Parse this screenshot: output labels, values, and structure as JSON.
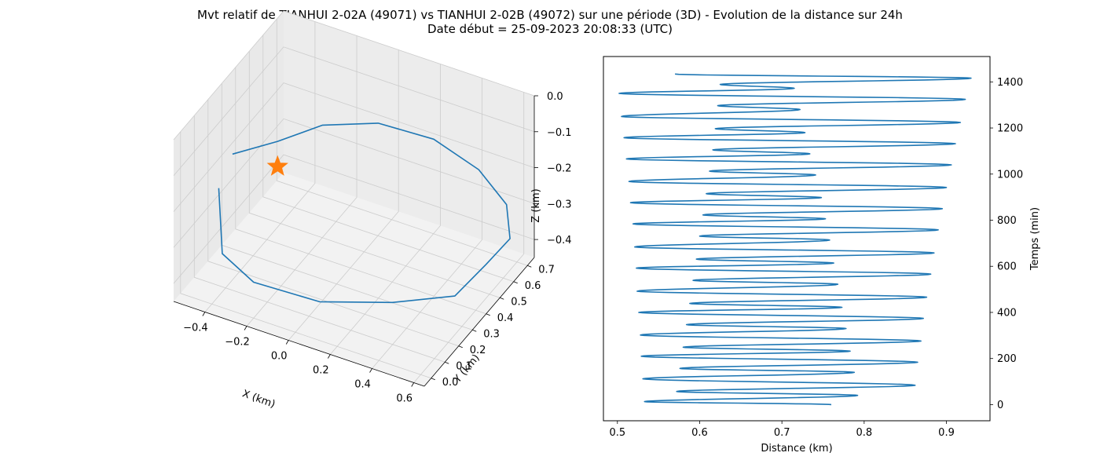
{
  "title": {
    "line1": "Mvt relatif de TIANHUI 2-02A (49071) vs TIANHUI 2-02B (49072) sur une période (3D) - Evolution de la distance sur 24h",
    "line2": "Date début = 25-09-2023 20:08:33 (UTC)"
  },
  "colors": {
    "line": "#1f77b4",
    "marker": "#ff7f0e",
    "pane": "#f2f2f2",
    "grid": "#cccccc"
  },
  "chart_data": [
    {
      "type": "line",
      "projection": "3d",
      "xlabel": "X (km)",
      "ylabel": "Y (km)",
      "zlabel": "Z (km)",
      "xlim": [
        -0.55,
        0.65
      ],
      "ylim": [
        -0.05,
        0.75
      ],
      "zlim": [
        -0.45,
        0.0
      ],
      "xticks": [
        "−0.4",
        "−0.2",
        "0.0",
        "0.2",
        "0.4",
        "0.6"
      ],
      "yticks": [
        "0.0",
        "0.1",
        "0.2",
        "0.3",
        "0.4",
        "0.5",
        "0.6",
        "0.7"
      ],
      "zticks": [
        "0.0",
        "−0.1",
        "−0.2",
        "−0.3",
        "−0.4"
      ],
      "grid": true,
      "marker": {
        "symbol": "star",
        "x": -0.25,
        "y": 0.25,
        "z": -0.15
      },
      "series": [
        {
          "points": [
            [
              -0.4,
              0.05,
              -0.15
            ],
            [
              -0.35,
              0.0,
              -0.3
            ],
            [
              -0.2,
              0.0,
              -0.35
            ],
            [
              0.05,
              0.1,
              -0.4
            ],
            [
              0.3,
              0.25,
              -0.42
            ],
            [
              0.5,
              0.4,
              -0.43
            ],
            [
              0.55,
              0.55,
              -0.4
            ],
            [
              0.58,
              0.68,
              -0.38
            ],
            [
              0.55,
              0.7,
              -0.3
            ],
            [
              0.45,
              0.65,
              -0.2
            ],
            [
              0.3,
              0.55,
              -0.1
            ],
            [
              0.1,
              0.45,
              -0.05
            ],
            [
              -0.1,
              0.35,
              -0.05
            ],
            [
              -0.25,
              0.25,
              -0.08
            ],
            [
              -0.4,
              0.15,
              -0.1
            ]
          ]
        }
      ]
    },
    {
      "type": "line",
      "xlabel": "Distance (km)",
      "ylabel": "Temps (min)",
      "xlim": [
        0.483,
        0.953
      ],
      "ylim": [
        -70,
        1510
      ],
      "xticks": [
        0.5,
        0.6,
        0.7,
        0.8,
        0.9
      ],
      "yticks": [
        0,
        200,
        400,
        600,
        800,
        1000,
        1200,
        1400
      ],
      "y_axis_position": "right",
      "series": [
        {
          "turning_points": [
            [
              0.76,
              0
            ],
            [
              0.533,
              13
            ],
            [
              0.792,
              40
            ],
            [
              0.572,
              57
            ],
            [
              0.862,
              84
            ],
            [
              0.531,
              112
            ],
            [
              0.788,
              140
            ],
            [
              0.576,
              157
            ],
            [
              0.865,
              184
            ],
            [
              0.529,
              210
            ],
            [
              0.783,
              232
            ],
            [
              0.58,
              249
            ],
            [
              0.869,
              276
            ],
            [
              0.528,
              302
            ],
            [
              0.778,
              330
            ],
            [
              0.584,
              347
            ],
            [
              0.872,
              374
            ],
            [
              0.526,
              400
            ],
            [
              0.773,
              422
            ],
            [
              0.588,
              439
            ],
            [
              0.876,
              466
            ],
            [
              0.524,
              492
            ],
            [
              0.768,
              522
            ],
            [
              0.592,
              539
            ],
            [
              0.881,
              566
            ],
            [
              0.523,
              592
            ],
            [
              0.763,
              614
            ],
            [
              0.596,
              631
            ],
            [
              0.885,
              658
            ],
            [
              0.521,
              684
            ],
            [
              0.758,
              714
            ],
            [
              0.6,
              731
            ],
            [
              0.89,
              758
            ],
            [
              0.519,
              784
            ],
            [
              0.753,
              806
            ],
            [
              0.604,
              823
            ],
            [
              0.895,
              850
            ],
            [
              0.516,
              876
            ],
            [
              0.748,
              898
            ],
            [
              0.608,
              915
            ],
            [
              0.9,
              942
            ],
            [
              0.514,
              968
            ],
            [
              0.741,
              996
            ],
            [
              0.612,
              1013
            ],
            [
              0.906,
              1040
            ],
            [
              0.511,
              1066
            ],
            [
              0.734,
              1088
            ],
            [
              0.616,
              1105
            ],
            [
              0.911,
              1132
            ],
            [
              0.508,
              1158
            ],
            [
              0.728,
              1180
            ],
            [
              0.619,
              1197
            ],
            [
              0.917,
              1224
            ],
            [
              0.505,
              1250
            ],
            [
              0.722,
              1280
            ],
            [
              0.622,
              1297
            ],
            [
              0.923,
              1324
            ],
            [
              0.502,
              1350
            ],
            [
              0.715,
              1372
            ],
            [
              0.625,
              1389
            ],
            [
              0.93,
              1416
            ],
            [
              0.57,
              1434
            ]
          ]
        }
      ]
    }
  ]
}
